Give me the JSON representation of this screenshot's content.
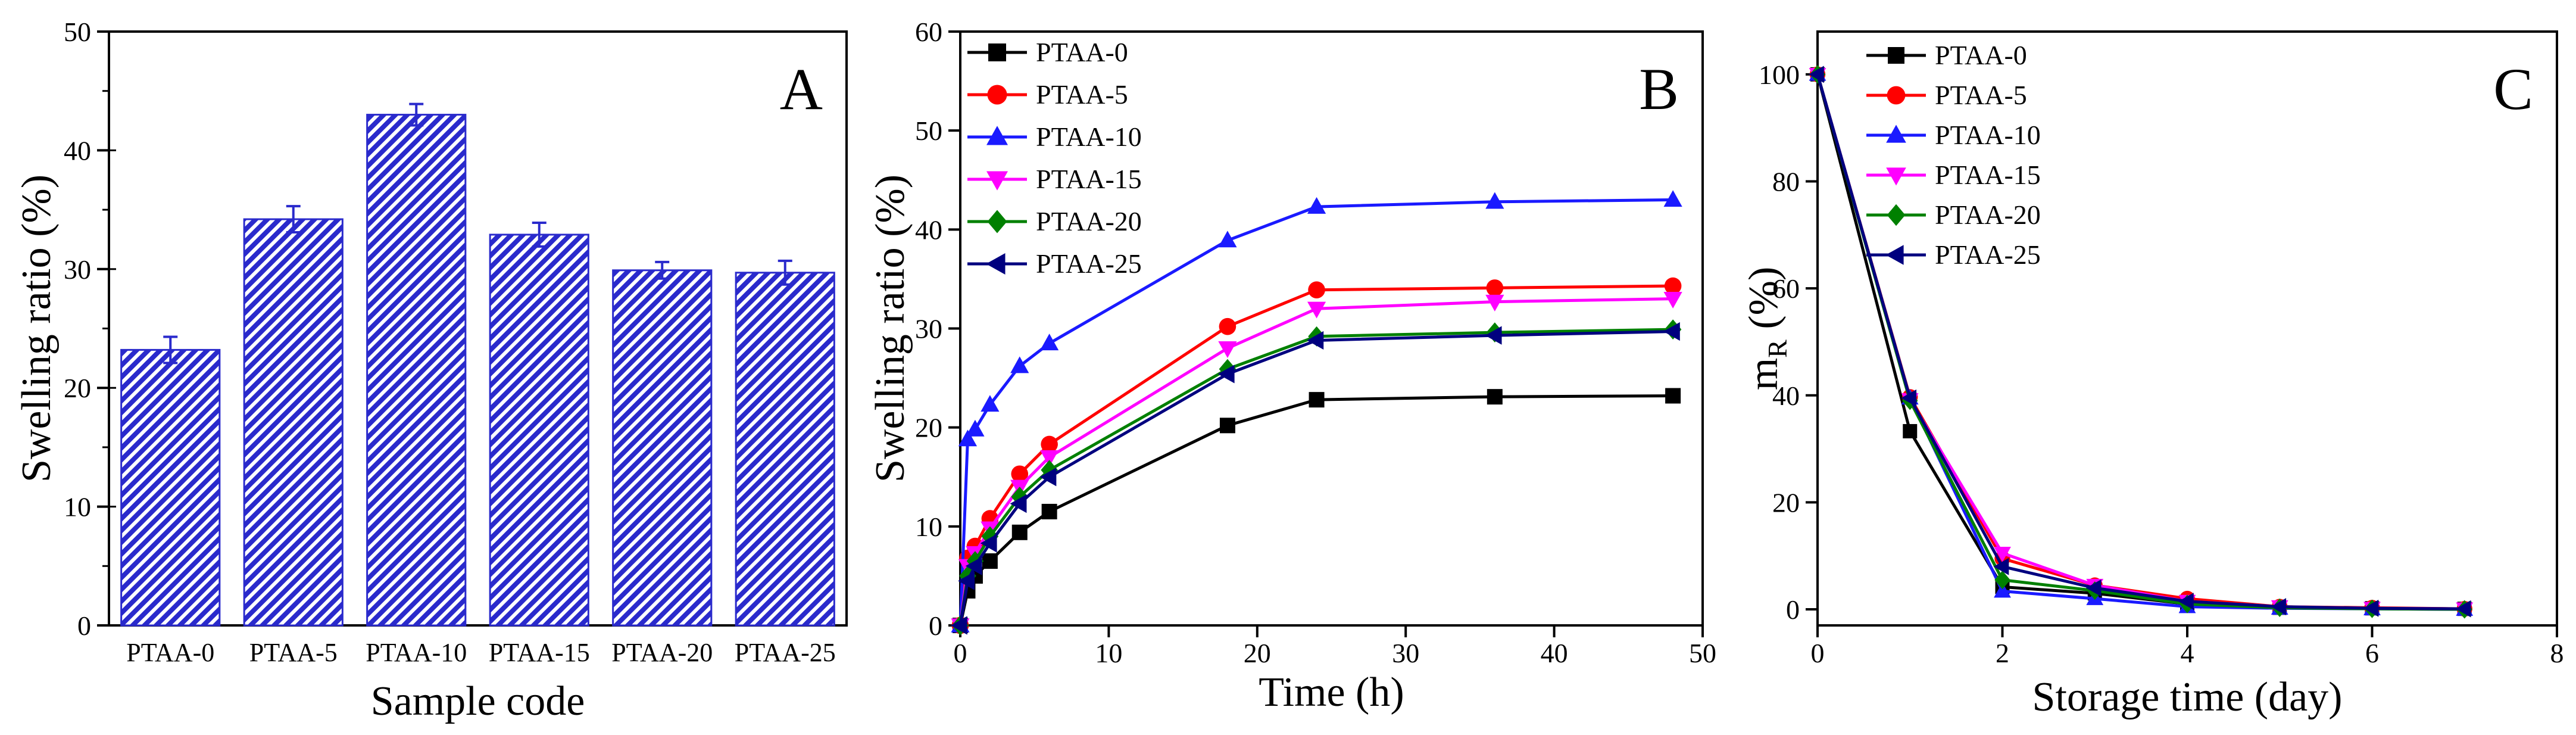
{
  "chart_data": [
    {
      "panel": "A",
      "type": "bar",
      "xlabel": "Sample code",
      "ylabel": "Swelling ratio (%)",
      "ylim": [
        0,
        50
      ],
      "yticks": [
        0,
        10,
        20,
        30,
        40,
        50
      ],
      "categories": [
        "PTAA-0",
        "PTAA-5",
        "PTAA-10",
        "PTAA-15",
        "PTAA-20",
        "PTAA-25"
      ],
      "values": [
        23.2,
        34.2,
        43.0,
        32.9,
        29.9,
        29.7
      ],
      "errors": [
        1.1,
        1.1,
        0.9,
        1.0,
        0.7,
        1.0
      ],
      "bar_color": "#2a2acc",
      "fill_pattern": "diagonal-hatch"
    },
    {
      "panel": "B",
      "type": "line",
      "xlabel": "Time (h)",
      "ylabel": "Swelling ratio (%)",
      "xlim": [
        0,
        50
      ],
      "ylim": [
        0,
        60
      ],
      "xticks": [
        0,
        10,
        20,
        30,
        40,
        50
      ],
      "yticks": [
        0,
        10,
        20,
        30,
        40,
        50,
        60
      ],
      "legend": "top-left",
      "x": [
        0,
        0.5,
        1,
        2,
        4,
        6,
        18,
        24,
        36,
        48
      ],
      "series": [
        {
          "name": "PTAA-0",
          "color": "#000000",
          "marker": "square",
          "values": [
            0,
            3.5,
            5,
            6.5,
            9.4,
            11.5,
            20.2,
            22.8,
            23.1,
            23.2
          ]
        },
        {
          "name": "PTAA-5",
          "color": "#ff0000",
          "marker": "circle",
          "values": [
            0,
            6.8,
            8,
            10.8,
            15.3,
            18.3,
            30.2,
            33.9,
            34.1,
            34.3
          ]
        },
        {
          "name": "PTAA-10",
          "color": "#1a1aff",
          "marker": "triangle-up",
          "values": [
            0,
            18.8,
            19.8,
            22.3,
            26.2,
            28.5,
            38.9,
            42.3,
            42.8,
            43.0
          ]
        },
        {
          "name": "PTAA-15",
          "color": "#ff00ff",
          "marker": "triangle-down",
          "values": [
            0,
            6.0,
            7.3,
            9.8,
            14.0,
            17.0,
            28.0,
            32.0,
            32.7,
            33.0
          ]
        },
        {
          "name": "PTAA-20",
          "color": "#008000",
          "marker": "diamond",
          "values": [
            0,
            5.0,
            6.5,
            9.0,
            13.0,
            15.7,
            25.9,
            29.2,
            29.6,
            29.9
          ]
        },
        {
          "name": "PTAA-25",
          "color": "#00007f",
          "marker": "triangle-left",
          "values": [
            0,
            4.5,
            6.0,
            8.3,
            12.3,
            15.0,
            25.4,
            28.8,
            29.3,
            29.7
          ]
        }
      ]
    },
    {
      "panel": "C",
      "type": "line",
      "xlabel": "Storage time (day)",
      "ylabel_main": "m",
      "ylabel_sub": "R",
      "ylabel_rest": " (%)",
      "xlim": [
        0,
        8
      ],
      "ylim": [
        -3,
        108
      ],
      "xticks": [
        0,
        2,
        4,
        6,
        8
      ],
      "yticks": [
        0,
        20,
        40,
        60,
        80,
        100
      ],
      "legend": "top-left",
      "x": [
        0,
        1,
        2,
        3,
        4,
        5,
        6,
        7
      ],
      "series": [
        {
          "name": "PTAA-0",
          "color": "#000000",
          "marker": "square",
          "values": [
            100,
            33.3,
            4.2,
            3.0,
            1.0,
            0.3,
            0.2,
            0.1
          ]
        },
        {
          "name": "PTAA-5",
          "color": "#ff0000",
          "marker": "circle",
          "values": [
            100,
            39.7,
            9.5,
            4.5,
            2.0,
            0.5,
            0.3,
            0.1
          ]
        },
        {
          "name": "PTAA-10",
          "color": "#1a1aff",
          "marker": "triangle-up",
          "values": [
            100,
            39.5,
            3.4,
            2.0,
            0.5,
            0.2,
            0.1,
            0.0
          ]
        },
        {
          "name": "PTAA-15",
          "color": "#ff00ff",
          "marker": "triangle-down",
          "values": [
            100,
            39.2,
            10.5,
            4.5,
            1.5,
            0.5,
            0.2,
            0.1
          ]
        },
        {
          "name": "PTAA-20",
          "color": "#008000",
          "marker": "diamond",
          "values": [
            100,
            39.0,
            5.5,
            3.5,
            1.0,
            0.3,
            0.1,
            0.0
          ]
        },
        {
          "name": "PTAA-25",
          "color": "#00007f",
          "marker": "triangle-left",
          "values": [
            100,
            39.5,
            8.0,
            4.0,
            1.5,
            0.5,
            0.2,
            0.1
          ]
        }
      ]
    }
  ]
}
